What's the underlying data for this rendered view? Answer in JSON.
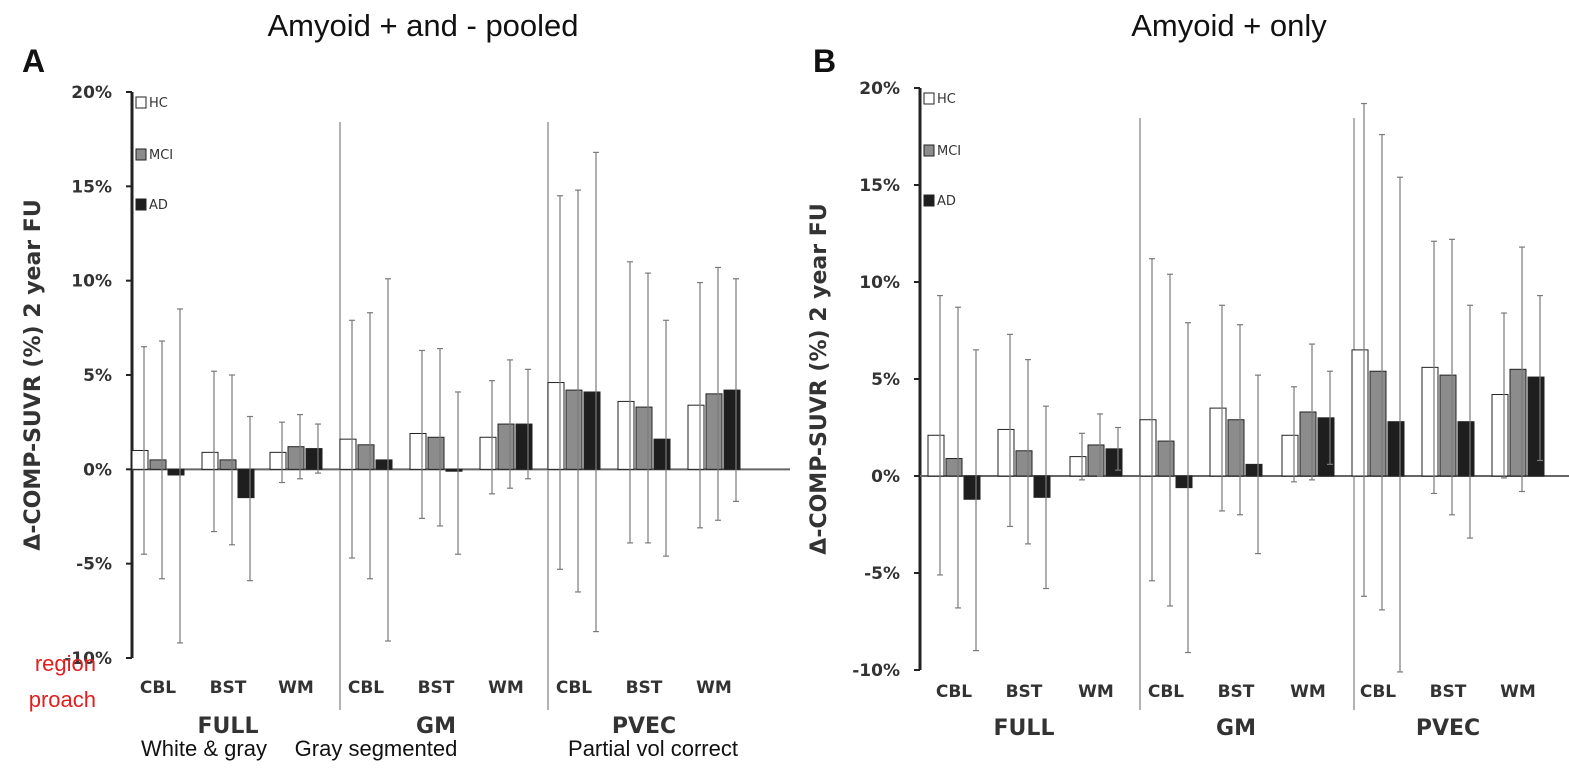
{
  "colors": {
    "HC": "#ffffff",
    "MCI": "#8c8c8c",
    "AD": "#1e1e1e",
    "note": "#e02020"
  },
  "legend": [
    "HC",
    "MCI",
    "AD"
  ],
  "annotations": {
    "left_note": [
      "region",
      "proach"
    ],
    "group_descriptions": [
      "White & gray",
      "Gray segmented",
      "Partial vol correct"
    ]
  },
  "chart_data": [
    {
      "type": "bar",
      "panel": "A",
      "title": "Amyoid + and - pooled",
      "ylabel": "Δ-COMP-SUVR (%) 2 year FU",
      "ylim": [
        -10,
        20
      ],
      "yticks": [
        "20%",
        "15%",
        "10%",
        "5%",
        "0%",
        "-5%",
        "-10%"
      ],
      "groups": [
        "FULL",
        "GM",
        "PVEC"
      ],
      "categories": [
        "CBL",
        "BST",
        "WM",
        "CBL",
        "BST",
        "WM",
        "CBL",
        "BST",
        "WM"
      ],
      "series": [
        {
          "name": "HC",
          "values": [
            1.0,
            0.9,
            0.9,
            1.6,
            1.9,
            1.7,
            4.6,
            3.6,
            3.4
          ],
          "err_low": [
            -4.5,
            -3.3,
            -0.7,
            -4.7,
            -2.6,
            -1.3,
            -5.3,
            -3.9,
            -3.1
          ],
          "err_high": [
            6.5,
            5.2,
            2.5,
            7.9,
            6.3,
            4.7,
            14.5,
            11.0,
            9.9
          ]
        },
        {
          "name": "MCI",
          "values": [
            0.5,
            0.5,
            1.2,
            1.3,
            1.7,
            2.4,
            4.2,
            3.3,
            4.0
          ],
          "err_low": [
            -5.8,
            -4.0,
            -0.5,
            -5.8,
            -3.0,
            -1.0,
            -6.5,
            -3.9,
            -2.7
          ],
          "err_high": [
            6.8,
            5.0,
            2.9,
            8.3,
            6.4,
            5.8,
            14.8,
            10.4,
            10.7
          ]
        },
        {
          "name": "AD",
          "values": [
            -0.3,
            -1.5,
            1.1,
            0.5,
            -0.1,
            2.4,
            4.1,
            1.6,
            4.2
          ],
          "err_low": [
            -9.2,
            -5.9,
            -0.2,
            -9.1,
            -4.5,
            -0.5,
            -8.6,
            -4.6,
            -1.7
          ],
          "err_high": [
            8.5,
            2.8,
            2.4,
            10.1,
            4.1,
            5.3,
            16.8,
            7.9,
            10.1
          ]
        }
      ]
    },
    {
      "type": "bar",
      "panel": "B",
      "title": "Amyoid + only",
      "ylabel": "Δ-COMP-SUVR (%) 2 year FU",
      "ylim": [
        -10,
        20
      ],
      "yticks": [
        "20%",
        "15%",
        "10%",
        "5%",
        "0%",
        "-5%",
        "-10%"
      ],
      "groups": [
        "FULL",
        "GM",
        "PVEC"
      ],
      "categories": [
        "CBL",
        "BST",
        "WM",
        "CBL",
        "BST",
        "WM",
        "CBL",
        "BST",
        "WM"
      ],
      "series": [
        {
          "name": "HC",
          "values": [
            2.1,
            2.4,
            1.0,
            2.9,
            3.5,
            2.1,
            6.5,
            5.6,
            4.2
          ],
          "err_low": [
            -5.1,
            -2.6,
            -0.2,
            -5.4,
            -1.8,
            -0.3,
            -6.2,
            -0.9,
            -0.1
          ],
          "err_high": [
            9.3,
            7.3,
            2.2,
            11.2,
            8.8,
            4.6,
            19.2,
            12.1,
            8.4
          ]
        },
        {
          "name": "MCI",
          "values": [
            0.9,
            1.3,
            1.6,
            1.8,
            2.9,
            3.3,
            5.4,
            5.2,
            5.5
          ],
          "err_low": [
            -6.8,
            -3.5,
            0.0,
            -6.7,
            -2.0,
            -0.2,
            -6.9,
            -2.0,
            -0.8
          ],
          "err_high": [
            8.7,
            6.0,
            3.2,
            10.4,
            7.8,
            6.8,
            17.6,
            12.2,
            11.8
          ]
        },
        {
          "name": "AD",
          "values": [
            -1.2,
            -1.1,
            1.4,
            -0.6,
            0.6,
            3.0,
            2.8,
            2.8,
            5.1
          ],
          "err_low": [
            -9.0,
            -5.8,
            0.3,
            -9.1,
            -4.0,
            0.6,
            -10.1,
            -3.2,
            0.8
          ],
          "err_high": [
            6.5,
            3.6,
            2.5,
            7.9,
            5.2,
            5.4,
            15.4,
            8.8,
            9.3
          ]
        }
      ]
    }
  ]
}
